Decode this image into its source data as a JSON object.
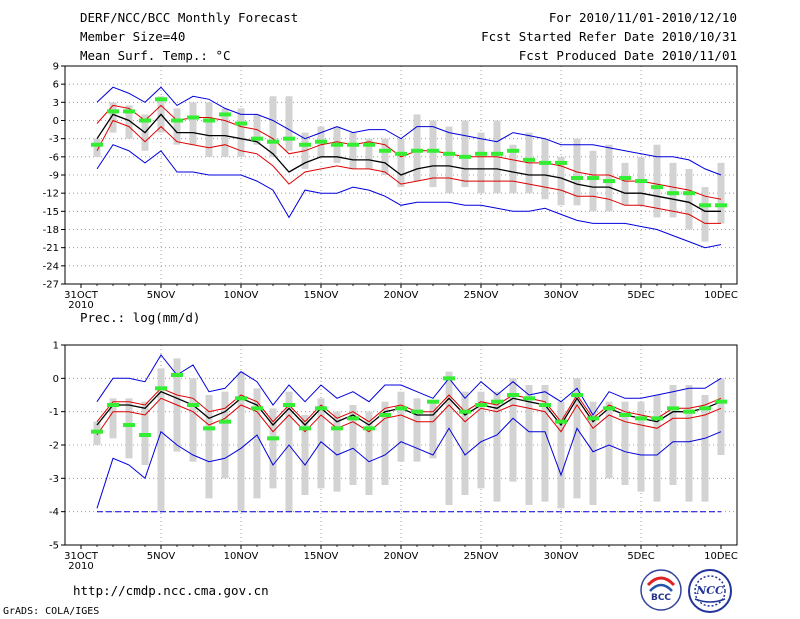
{
  "header": {
    "title": "DERF/NCC/BCC Monthly Forecast",
    "member_size": "Member Size=40",
    "variable_1": "Mean Surf. Temp.: °C",
    "period": "For 2010/11/01-2010/12/10",
    "started": "Fcst Started Refer Date 2010/10/31",
    "produced": "Fcst Produced Date 2010/11/01"
  },
  "footer": {
    "url": "http://cmdp.ncc.cma.gov.cn",
    "grads": "GrADS: COLA/IGES",
    "logo_bcc": "BCC",
    "logo_ncc": "NCC"
  },
  "colors": {
    "ensemble_mean": "#000000",
    "spread": "#dd0000",
    "extremes": "#0000dd",
    "observed": "#33ee33",
    "box": "#d3d3d3"
  },
  "chart_data": [
    {
      "type": "line",
      "title": "Mean Surf. Temp.: °C",
      "x_tick_labels": [
        "31OCT",
        "5NOV",
        "10NOV",
        "15NOV",
        "20NOV",
        "25NOV",
        "30NOV",
        "5DEC",
        "10DEC"
      ],
      "x_year_label": "2010",
      "y_tick_labels": [
        "9",
        "6",
        "3",
        "0",
        "-3",
        "-6",
        "-9",
        "-12",
        "-15",
        "-18",
        "-21",
        "-24",
        "-27"
      ],
      "ylim": [
        -27,
        9
      ],
      "x_days": [
        1,
        2,
        3,
        4,
        5,
        6,
        7,
        8,
        9,
        10,
        11,
        12,
        13,
        14,
        15,
        16,
        17,
        18,
        19,
        20,
        21,
        22,
        23,
        24,
        25,
        26,
        27,
        28,
        29,
        30,
        31,
        32,
        33,
        34,
        35,
        36,
        37,
        38,
        39,
        40
      ],
      "series": [
        {
          "name": "max",
          "values": [
            3,
            5.5,
            4.5,
            3,
            5.5,
            2.5,
            4,
            3.5,
            2,
            1,
            1,
            0,
            -1.5,
            -3,
            -2,
            -1,
            -2,
            -1.5,
            -1.5,
            -3,
            -1,
            -1,
            -2,
            -2.5,
            -3,
            -3.5,
            -2,
            -2.5,
            -3,
            -4,
            -4,
            -4,
            -4.5,
            -5,
            -5.5,
            -6,
            -6,
            -6.5,
            -8,
            -9
          ]
        },
        {
          "name": "upper",
          "values": [
            -0.5,
            2.5,
            2,
            0,
            2.5,
            0,
            0.5,
            0.5,
            0,
            -1,
            -1.5,
            -3,
            -5.5,
            -5,
            -4,
            -3.5,
            -4,
            -3.5,
            -4,
            -6,
            -5,
            -5,
            -5.5,
            -6,
            -6,
            -6,
            -6.5,
            -7,
            -7,
            -7.5,
            -8.5,
            -9,
            -9,
            -10,
            -10,
            -10.5,
            -11,
            -11.5,
            -12.5,
            -13
          ]
        },
        {
          "name": "mean",
          "values": [
            -3,
            1,
            0,
            -2,
            1,
            -2,
            -2,
            -2.5,
            -2.5,
            -3,
            -3.5,
            -5.5,
            -8.5,
            -7,
            -6,
            -6,
            -6.5,
            -6.5,
            -7,
            -9,
            -8,
            -7.5,
            -7.5,
            -8,
            -8,
            -8,
            -8.5,
            -9,
            -9,
            -9.5,
            -10.5,
            -11,
            -11,
            -12,
            -12,
            -12.5,
            -13,
            -13.5,
            -15,
            -15
          ]
        },
        {
          "name": "lower",
          "values": [
            -5,
            0,
            -1,
            -3.5,
            -1,
            -3.5,
            -4,
            -4.5,
            -4,
            -5,
            -5.5,
            -7.5,
            -10.5,
            -8.5,
            -8,
            -7.5,
            -8,
            -8,
            -8.5,
            -10.5,
            -10,
            -9.5,
            -9.5,
            -10,
            -10,
            -10,
            -10,
            -10.5,
            -11,
            -11.5,
            -12.5,
            -12.5,
            -13,
            -14,
            -14,
            -14.5,
            -15,
            -15.5,
            -17,
            -17
          ]
        },
        {
          "name": "min",
          "values": [
            -8,
            -4,
            -5,
            -7,
            -5,
            -8.5,
            -8.5,
            -9,
            -9,
            -9,
            -10,
            -11.5,
            -16,
            -11.5,
            -12,
            -12,
            -11,
            -11.5,
            -12.5,
            -14,
            -13.5,
            -13.5,
            -13.5,
            -14,
            -14,
            -14.5,
            -15,
            -15,
            -14.5,
            -15.5,
            -16.5,
            -17,
            -17,
            -17,
            -17.5,
            -18,
            -19,
            -20,
            -21,
            -20.5
          ]
        }
      ],
      "boxes": [
        [
          -6,
          -3
        ],
        [
          -2,
          3
        ],
        [
          -3,
          2.5
        ],
        [
          -5,
          1
        ],
        [
          -2,
          4
        ],
        [
          -4,
          2
        ],
        [
          -4,
          3
        ],
        [
          -6,
          3
        ],
        [
          -6,
          2
        ],
        [
          -6,
          2
        ],
        [
          -4,
          1
        ],
        [
          -6,
          4
        ],
        [
          -5,
          4
        ],
        [
          -8,
          -2
        ],
        [
          -6,
          -1
        ],
        [
          -7,
          -1
        ],
        [
          -8,
          -2
        ],
        [
          -8,
          -3
        ],
        [
          -9,
          -3
        ],
        [
          -11,
          -3
        ],
        [
          -10,
          1
        ],
        [
          -11,
          0
        ],
        [
          -12,
          -1
        ],
        [
          -11,
          0
        ],
        [
          -12,
          -2
        ],
        [
          -12,
          0
        ],
        [
          -12,
          -4
        ],
        [
          -12,
          -2
        ],
        [
          -13,
          -3
        ],
        [
          -14,
          -6
        ],
        [
          -14,
          -3
        ],
        [
          -15,
          -5
        ],
        [
          -15,
          -4
        ],
        [
          -14,
          -7
        ],
        [
          -14,
          -6
        ],
        [
          -16,
          -4
        ],
        [
          -16,
          -7
        ],
        [
          -18,
          -8
        ],
        [
          -20,
          -11
        ],
        [
          -17,
          -7
        ]
      ],
      "observed": [
        -4,
        1.5,
        1.5,
        0,
        3.5,
        0,
        0.5,
        0,
        1,
        -0.5,
        -3,
        -3.5,
        -3,
        -4,
        -3.5,
        -4,
        -4,
        -4,
        -5,
        -5.5,
        -5,
        -5,
        -5.5,
        -6,
        -5.5,
        -5.5,
        -5,
        -6.5,
        -7,
        -7,
        -9.5,
        -9.5,
        -10,
        -9.5,
        -10,
        -11,
        -12,
        -12,
        -14,
        -14
      ]
    },
    {
      "type": "line",
      "title": "Prec.: log(mm/d)",
      "x_tick_labels": [
        "31OCT",
        "5NOV",
        "10NOV",
        "15NOV",
        "20NOV",
        "25NOV",
        "30NOV",
        "5DEC",
        "10DEC"
      ],
      "x_year_label": "2010",
      "y_tick_labels": [
        "1",
        "0",
        "-1",
        "-2",
        "-3",
        "-4",
        "-5"
      ],
      "ylim": [
        -5,
        1
      ],
      "x_days": [
        1,
        2,
        3,
        4,
        5,
        6,
        7,
        8,
        9,
        10,
        11,
        12,
        13,
        14,
        15,
        16,
        17,
        18,
        19,
        20,
        21,
        22,
        23,
        24,
        25,
        26,
        27,
        28,
        29,
        30,
        31,
        32,
        33,
        34,
        35,
        36,
        37,
        38,
        39,
        40
      ],
      "series": [
        {
          "name": "max",
          "values": [
            -0.7,
            0,
            0,
            -0.1,
            0.7,
            0.1,
            0.4,
            -0.4,
            -0.3,
            0.2,
            -0.1,
            -0.8,
            -0.2,
            -0.7,
            -0.2,
            -0.6,
            -0.4,
            -0.7,
            -0.2,
            -0.2,
            -0.4,
            -0.6,
            0,
            -0.6,
            -0.1,
            -0.5,
            -0.1,
            -0.5,
            -0.4,
            -0.7,
            -0.3,
            -1.1,
            -0.4,
            -0.6,
            -0.6,
            -0.5,
            -0.4,
            -0.3,
            -0.3,
            0
          ]
        },
        {
          "name": "upper",
          "values": [
            -1.3,
            -0.7,
            -0.7,
            -0.8,
            -0.3,
            -0.5,
            -0.6,
            -1,
            -0.9,
            -0.5,
            -0.7,
            -1.3,
            -0.8,
            -1.3,
            -0.8,
            -1.2,
            -1,
            -1.3,
            -0.9,
            -0.8,
            -1,
            -1,
            -0.5,
            -1,
            -0.7,
            -0.8,
            -0.5,
            -0.6,
            -0.7,
            -1.3,
            -0.5,
            -1.2,
            -0.8,
            -1,
            -1.1,
            -1.2,
            -0.9,
            -0.9,
            -0.8,
            -0.6
          ]
        },
        {
          "name": "mean",
          "values": [
            -1.4,
            -0.8,
            -0.8,
            -0.9,
            -0.4,
            -0.6,
            -0.8,
            -1.2,
            -1,
            -0.6,
            -0.8,
            -1.4,
            -0.9,
            -1.4,
            -0.9,
            -1.3,
            -1.1,
            -1.4,
            -1,
            -0.9,
            -1.1,
            -1.1,
            -0.6,
            -1.1,
            -0.8,
            -0.9,
            -0.6,
            -0.7,
            -0.8,
            -1.4,
            -0.6,
            -1.3,
            -0.9,
            -1.1,
            -1.2,
            -1.3,
            -1,
            -1,
            -0.9,
            -0.7
          ]
        },
        {
          "name": "lower",
          "values": [
            -1.7,
            -1,
            -1,
            -1.1,
            -0.6,
            -0.8,
            -1,
            -1.4,
            -1.2,
            -0.8,
            -1,
            -1.6,
            -1.1,
            -1.6,
            -1.1,
            -1.5,
            -1.3,
            -1.6,
            -1.2,
            -1.1,
            -1.3,
            -1.3,
            -0.8,
            -1.3,
            -0.9,
            -1,
            -0.8,
            -0.9,
            -1,
            -1.6,
            -0.8,
            -1.5,
            -1.1,
            -1.3,
            -1.4,
            -1.5,
            -1.2,
            -1.2,
            -1.1,
            -0.9
          ]
        },
        {
          "name": "min",
          "values": [
            -3.9,
            -2.4,
            -2.6,
            -3,
            -1.6,
            -2,
            -2.3,
            -2.5,
            -2.4,
            -2.1,
            -1.7,
            -2.6,
            -2,
            -2.6,
            -1.9,
            -2.3,
            -2.1,
            -2.5,
            -2.3,
            -1.9,
            -2.1,
            -2.3,
            -1.5,
            -2.3,
            -1.9,
            -1.7,
            -1.2,
            -1.6,
            -1.6,
            -2.9,
            -1.5,
            -2.2,
            -2,
            -2.2,
            -2.3,
            -2.3,
            -1.9,
            -1.9,
            -1.8,
            -1.6
          ]
        },
        {
          "name": "floor",
          "values": [
            -4,
            -4,
            -4,
            -4,
            -4,
            -4,
            -4,
            -4,
            -4,
            -4,
            -4,
            -4,
            -4,
            -4,
            -4,
            -4,
            -4,
            -4,
            -4,
            -4,
            -4,
            -4,
            -4,
            -4,
            -4,
            -4,
            -4,
            -4,
            -4,
            -4,
            -4,
            -4,
            -4,
            -4,
            -4,
            -4,
            -4,
            -4,
            -4,
            -4
          ]
        }
      ],
      "boxes": [
        [
          -2,
          -1.3
        ],
        [
          -1.8,
          -0.6
        ],
        [
          -2.4,
          -0.6
        ],
        [
          -2.6,
          -0.7
        ],
        [
          -4,
          0.3
        ],
        [
          -2.2,
          0.6
        ],
        [
          -2.5,
          0
        ],
        [
          -3.6,
          -0.5
        ],
        [
          -3,
          -0.4
        ],
        [
          -4,
          0.2
        ],
        [
          -3.6,
          -0.3
        ],
        [
          -3.3,
          -0.9
        ],
        [
          -4,
          -0.4
        ],
        [
          -3.5,
          -1.1
        ],
        [
          -3.3,
          -0.6
        ],
        [
          -3.4,
          -1
        ],
        [
          -3.2,
          -0.8
        ],
        [
          -3.5,
          -1
        ],
        [
          -3.2,
          -0.7
        ],
        [
          -2.5,
          -0.4
        ],
        [
          -2.5,
          -0.6
        ],
        [
          -2.4,
          -0.7
        ],
        [
          -3.8,
          0.2
        ],
        [
          -3.5,
          -0.4
        ],
        [
          -3.3,
          -0.4
        ],
        [
          -3.7,
          -0.4
        ],
        [
          -3.1,
          0
        ],
        [
          -3.8,
          -0.2
        ],
        [
          -3.7,
          -0.2
        ],
        [
          -3.9,
          -0.7
        ],
        [
          -3.6,
          0
        ],
        [
          -3.8,
          -0.7
        ],
        [
          -3,
          -0.7
        ],
        [
          -3.2,
          -0.7
        ],
        [
          -3.4,
          -0.7
        ],
        [
          -3.7,
          -0.5
        ],
        [
          -3.2,
          -0.2
        ],
        [
          -3.7,
          -0.2
        ],
        [
          -3.7,
          -0.5
        ],
        [
          -2.3,
          0
        ]
      ],
      "observed": [
        -1.6,
        -0.8,
        -1.4,
        -1.7,
        -0.3,
        0.1,
        -0.8,
        -1.5,
        -1.3,
        -0.6,
        -0.9,
        -1.8,
        -0.8,
        -1.5,
        -0.9,
        -1.5,
        -1.2,
        -1.5,
        -1.1,
        -0.9,
        -1,
        -0.7,
        0,
        -1,
        -0.8,
        -0.7,
        -0.5,
        -0.6,
        -0.8,
        -1.3,
        -0.5,
        -1.2,
        -0.9,
        -1.1,
        -1.2,
        -1.2,
        -0.9,
        -1,
        -0.9,
        -0.7
      ]
    }
  ]
}
